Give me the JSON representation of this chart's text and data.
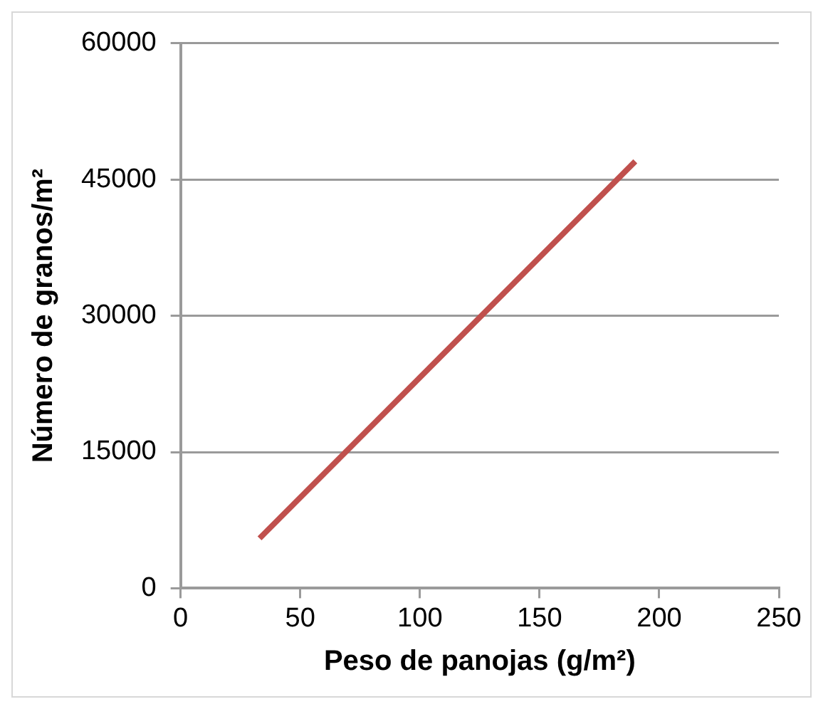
{
  "chart_data": {
    "type": "line",
    "xlabel": "Peso de panojas (g/m²)",
    "ylabel": "Número de granos/m²",
    "x": [
      33,
      190
    ],
    "series": [
      {
        "color": "#c0504d",
        "values": [
          5500,
          47000
        ]
      }
    ],
    "xlim": [
      0,
      250
    ],
    "xticks": [
      0,
      50,
      100,
      150,
      200,
      250
    ],
    "ylim": [
      0,
      60000
    ],
    "yticks": [
      0,
      15000,
      30000,
      45000,
      60000
    ],
    "grid": "y",
    "legend": false,
    "marker": "none",
    "line_style": "solid"
  }
}
